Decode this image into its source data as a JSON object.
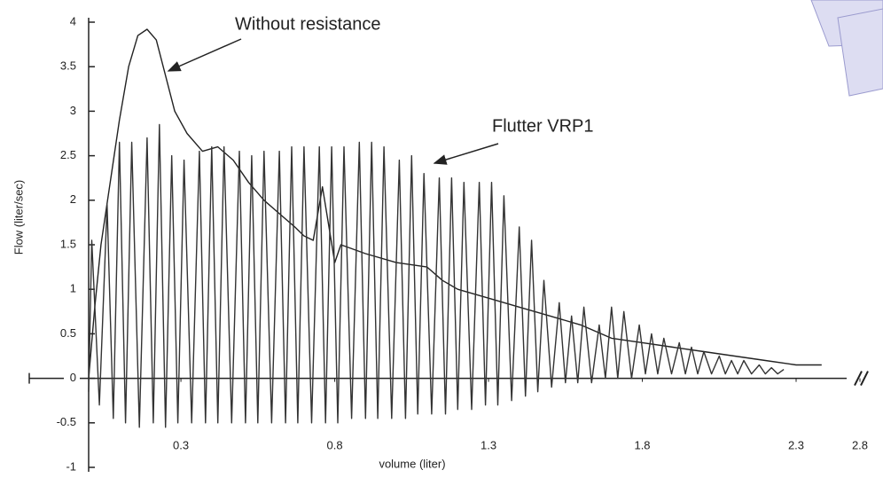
{
  "chart_data": {
    "type": "line",
    "y_label": "Flow (liter/sec)",
    "x_label": "volume (liter)",
    "annotations": [
      "Without resistance",
      "Flutter VRP1"
    ],
    "xlim": [
      0,
      2.8
    ],
    "xticks": [
      0.3,
      0.8,
      1.3,
      1.8,
      2.3,
      2.8
    ],
    "axis_break": true,
    "ylim": [
      -1,
      4
    ],
    "yticks": [
      -1,
      -0.5,
      0,
      0.5,
      1,
      1.5,
      2,
      2.5,
      3,
      3.5,
      4
    ],
    "series": [
      {
        "color": "#222222",
        "x": [
          0,
          0.02,
          0.04,
          0.07,
          0.1,
          0.13,
          0.16,
          0.19,
          0.22,
          0.25,
          0.28,
          0.32,
          0.37,
          0.42,
          0.47,
          0.52,
          0.57,
          0.62,
          0.67,
          0.7,
          0.73,
          0.76,
          0.8,
          0.82,
          0.9,
          1.0,
          1.1,
          1.15,
          1.2,
          1.3,
          1.4,
          1.5,
          1.6,
          1.7,
          1.8,
          1.9,
          2.0,
          2.1,
          2.2,
          2.3,
          2.5
        ],
        "values": [
          0,
          0.8,
          1.5,
          2.2,
          2.9,
          3.5,
          3.85,
          3.92,
          3.8,
          3.4,
          3.0,
          2.75,
          2.55,
          2.6,
          2.45,
          2.2,
          2.0,
          1.85,
          1.7,
          1.6,
          1.55,
          2.15,
          1.3,
          1.5,
          1.4,
          1.3,
          1.25,
          1.1,
          1.0,
          0.9,
          0.8,
          0.7,
          0.6,
          0.45,
          0.4,
          0.35,
          0.3,
          0.25,
          0.2,
          0.15,
          0.15
        ]
      },
      {
        "color": "#333333",
        "x": [
          0,
          0.01,
          0.035,
          0.06,
          0.08,
          0.1,
          0.12,
          0.14,
          0.165,
          0.19,
          0.21,
          0.23,
          0.25,
          0.27,
          0.29,
          0.31,
          0.335,
          0.36,
          0.38,
          0.4,
          0.42,
          0.44,
          0.465,
          0.49,
          0.51,
          0.53,
          0.55,
          0.57,
          0.595,
          0.62,
          0.64,
          0.66,
          0.68,
          0.7,
          0.725,
          0.75,
          0.77,
          0.79,
          0.81,
          0.83,
          0.855,
          0.88,
          0.9,
          0.92,
          0.94,
          0.96,
          0.985,
          1.01,
          1.03,
          1.05,
          1.07,
          1.09,
          1.115,
          1.14,
          1.16,
          1.18,
          1.2,
          1.22,
          1.245,
          1.27,
          1.29,
          1.31,
          1.33,
          1.35,
          1.375,
          1.4,
          1.42,
          1.44,
          1.46,
          1.48,
          1.505,
          1.53,
          1.55,
          1.57,
          1.59,
          1.61,
          1.635,
          1.66,
          1.68,
          1.7,
          1.72,
          1.74,
          1.765,
          1.79,
          1.81,
          1.83,
          1.85,
          1.87,
          1.895,
          1.92,
          1.94,
          1.96,
          1.98,
          2.0,
          2.025,
          2.05,
          2.07,
          2.09,
          2.11,
          2.13,
          2.155,
          2.18,
          2.2,
          2.22,
          2.24,
          2.26
        ],
        "values": [
          -0.15,
          1.55,
          -0.3,
          1.95,
          -0.45,
          2.65,
          -0.5,
          2.65,
          -0.55,
          2.7,
          -0.5,
          2.85,
          -0.55,
          2.5,
          -0.5,
          2.45,
          -0.5,
          2.55,
          -0.5,
          2.6,
          -0.5,
          2.6,
          -0.5,
          2.55,
          -0.5,
          2.5,
          -0.5,
          2.55,
          -0.5,
          2.55,
          -0.5,
          2.6,
          -0.5,
          2.6,
          -0.5,
          2.6,
          -0.5,
          2.6,
          -0.5,
          2.6,
          -0.45,
          2.65,
          -0.45,
          2.65,
          -0.45,
          2.6,
          -0.45,
          2.45,
          -0.45,
          2.5,
          -0.4,
          2.3,
          -0.4,
          2.25,
          -0.4,
          2.25,
          -0.35,
          2.2,
          -0.35,
          2.2,
          -0.3,
          2.2,
          -0.3,
          2.05,
          -0.25,
          1.7,
          -0.2,
          1.55,
          -0.15,
          1.1,
          -0.1,
          0.85,
          -0.05,
          0.7,
          -0.05,
          0.8,
          -0.05,
          0.6,
          0,
          0.8,
          0,
          0.75,
          0,
          0.6,
          0.05,
          0.5,
          0.05,
          0.45,
          0.05,
          0.4,
          0.05,
          0.35,
          0.05,
          0.3,
          0.05,
          0.25,
          0.05,
          0.2,
          0.05,
          0.2,
          0.05,
          0.15,
          0.05,
          0.12,
          0.05,
          0.1
        ]
      }
    ]
  }
}
